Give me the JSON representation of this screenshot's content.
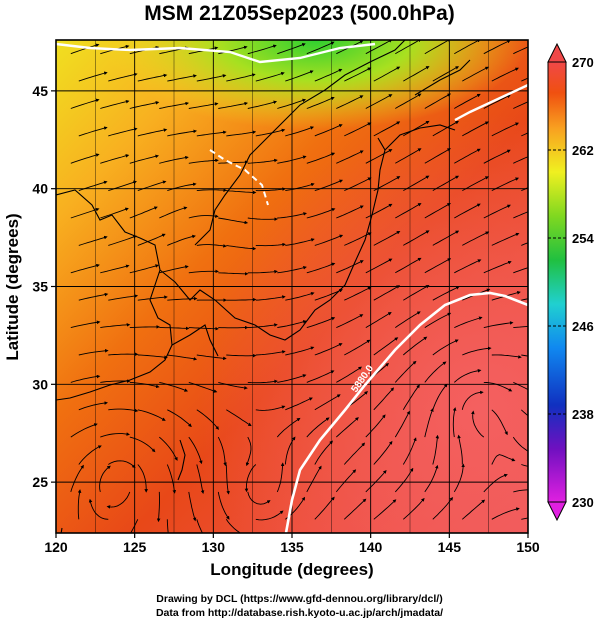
{
  "title": "MSM 21Z05Sep2023 (500.0hPa)",
  "xaxis": {
    "label": "Longitude (degrees)",
    "range": [
      120,
      150
    ],
    "ticks": [
      120,
      125,
      130,
      135,
      140,
      145,
      150
    ]
  },
  "yaxis": {
    "label": "Latitude  (degrees)",
    "range": [
      22.4,
      47.6
    ],
    "ticks": [
      25,
      30,
      35,
      40,
      45
    ]
  },
  "colorbar": {
    "range": [
      230,
      270
    ],
    "ticks": [
      230,
      238,
      246,
      254,
      262,
      270
    ],
    "colors": [
      "#e020e0",
      "#1030c0",
      "#1080e8",
      "#20c8c8",
      "#20c020",
      "#a0e020",
      "#f0f020",
      "#f8b020",
      "#f06010",
      "#e83818",
      "#f05050"
    ]
  },
  "contours": [
    {
      "label": "5880.0",
      "value": 5880
    }
  ],
  "credits": [
    "Drawing by DCL (https://www.gfd-dennou.org/library/dcl/)",
    "Data from http://database.rish.kyoto-u.ac.jp/arch/jmadata/"
  ]
}
